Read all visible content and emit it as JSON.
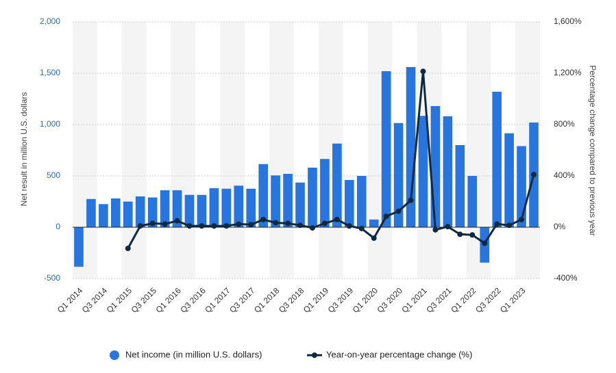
{
  "chart_data": {
    "type": "bar",
    "categories": [
      "Q1 2014",
      null,
      "Q3 2014",
      null,
      "Q1 2015",
      null,
      "Q3 2015",
      null,
      "Q1 2016",
      null,
      "Q3 2016",
      null,
      "Q1 2017",
      null,
      "Q3 2017",
      null,
      "Q1 2018",
      null,
      "Q3 2018",
      null,
      "Q1 2019",
      null,
      "Q3 2019",
      null,
      "Q1 2020",
      null,
      "Q3 2020",
      null,
      "Q1 2021",
      null,
      "Q3 2021",
      null,
      "Q1 2022",
      null,
      "Q3 2022",
      null,
      "Q1 2023",
      null
    ],
    "series": [
      {
        "name": "Net income (in million U.S. dollars)",
        "type": "bar",
        "color": "#2876dd",
        "values": [
          -385,
          275,
          225,
          280,
          250,
          300,
          290,
          360,
          360,
          315,
          315,
          380,
          375,
          405,
          375,
          615,
          505,
          520,
          435,
          580,
          665,
          815,
          460,
          500,
          75,
          1520,
          1015,
          1560,
          1085,
          1180,
          1080,
          800,
          500,
          -345,
          1320,
          915,
          790,
          1020
        ]
      },
      {
        "name": "Year-on-year percentage change (%)",
        "type": "line",
        "axis": "y2",
        "color": "#0f2a40",
        "values": [
          null,
          null,
          null,
          null,
          -165,
          10,
          30,
          25,
          50,
          10,
          10,
          10,
          10,
          25,
          20,
          60,
          35,
          30,
          15,
          -5,
          30,
          60,
          10,
          -10,
          -85,
          85,
          125,
          210,
          1215,
          -20,
          5,
          -55,
          -60,
          -125,
          25,
          15,
          60,
          410
        ]
      }
    ],
    "y_label": "Net result in million U.S. dollars",
    "y2_label": "Percentage change compared to previous year",
    "ylim": [
      -500,
      2000
    ],
    "yticks": [
      -500,
      0,
      500,
      {
        "value": 1000,
        "label": "1,000"
      },
      {
        "value": 1500,
        "label": "1,500"
      },
      {
        "value": 2000,
        "label": "2,000"
      }
    ],
    "y2lim": [
      -400,
      1600
    ],
    "y2ticks": [
      {
        "value": -400,
        "label": "-400%"
      },
      {
        "value": 0,
        "label": "0%"
      },
      {
        "value": 400,
        "label": "400%"
      },
      {
        "value": 800,
        "label": "800%"
      },
      {
        "value": 1200,
        "label": "1,200%"
      },
      {
        "value": 1600,
        "label": "1,600%"
      }
    ],
    "grid": true,
    "legend": "bottom"
  }
}
